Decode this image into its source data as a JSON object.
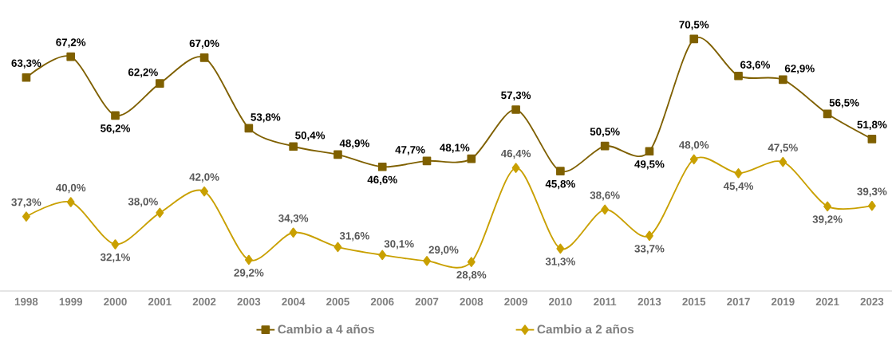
{
  "chart_data": {
    "type": "line",
    "categories": [
      "1998",
      "1999",
      "2000",
      "2001",
      "2002",
      "2003",
      "2004",
      "2005",
      "2006",
      "2007",
      "2008",
      "2009",
      "2010",
      "2011",
      "2013",
      "2015",
      "2017",
      "2019",
      "2021",
      "2023"
    ],
    "series": [
      {
        "name": "Cambio a 4 años",
        "color": "#7f6000",
        "marker": "square",
        "values": [
          63.3,
          67.2,
          56.2,
          62.2,
          67.0,
          53.8,
          50.4,
          48.9,
          46.6,
          47.7,
          48.1,
          57.3,
          45.8,
          50.5,
          49.5,
          70.5,
          63.6,
          62.9,
          56.5,
          51.8
        ],
        "value_labels": [
          "63,3%",
          "67,2%",
          "56,2%",
          "62,2%",
          "67,0%",
          "53,8%",
          "50,4%",
          "48,9%",
          "46,6%",
          "47,7%",
          "48,1%",
          "57,3%",
          "45,8%",
          "50,5%",
          "49,5%",
          "70,5%",
          "63,6%",
          "62,9%",
          "56,5%",
          "51,8%"
        ]
      },
      {
        "name": "Cambio a 2 años",
        "color": "#c9a000",
        "marker": "diamond",
        "values": [
          37.3,
          40.0,
          32.1,
          38.0,
          42.0,
          29.2,
          34.3,
          31.6,
          30.1,
          29.0,
          28.8,
          46.4,
          31.3,
          38.6,
          33.7,
          48.0,
          45.4,
          47.5,
          39.2,
          39.3
        ],
        "value_labels": [
          "37,3%",
          "40,0%",
          "32,1%",
          "38,0%",
          "42,0%",
          "29,2%",
          "34,3%",
          "31,6%",
          "30,1%",
          "29,0%",
          "28,8%",
          "46,4%",
          "31,3%",
          "38,6%",
          "33,7%",
          "48,0%",
          "45,4%",
          "47,5%",
          "39,2%",
          "39,3%"
        ]
      }
    ],
    "legend": "bottom",
    "line_style": "solid"
  }
}
